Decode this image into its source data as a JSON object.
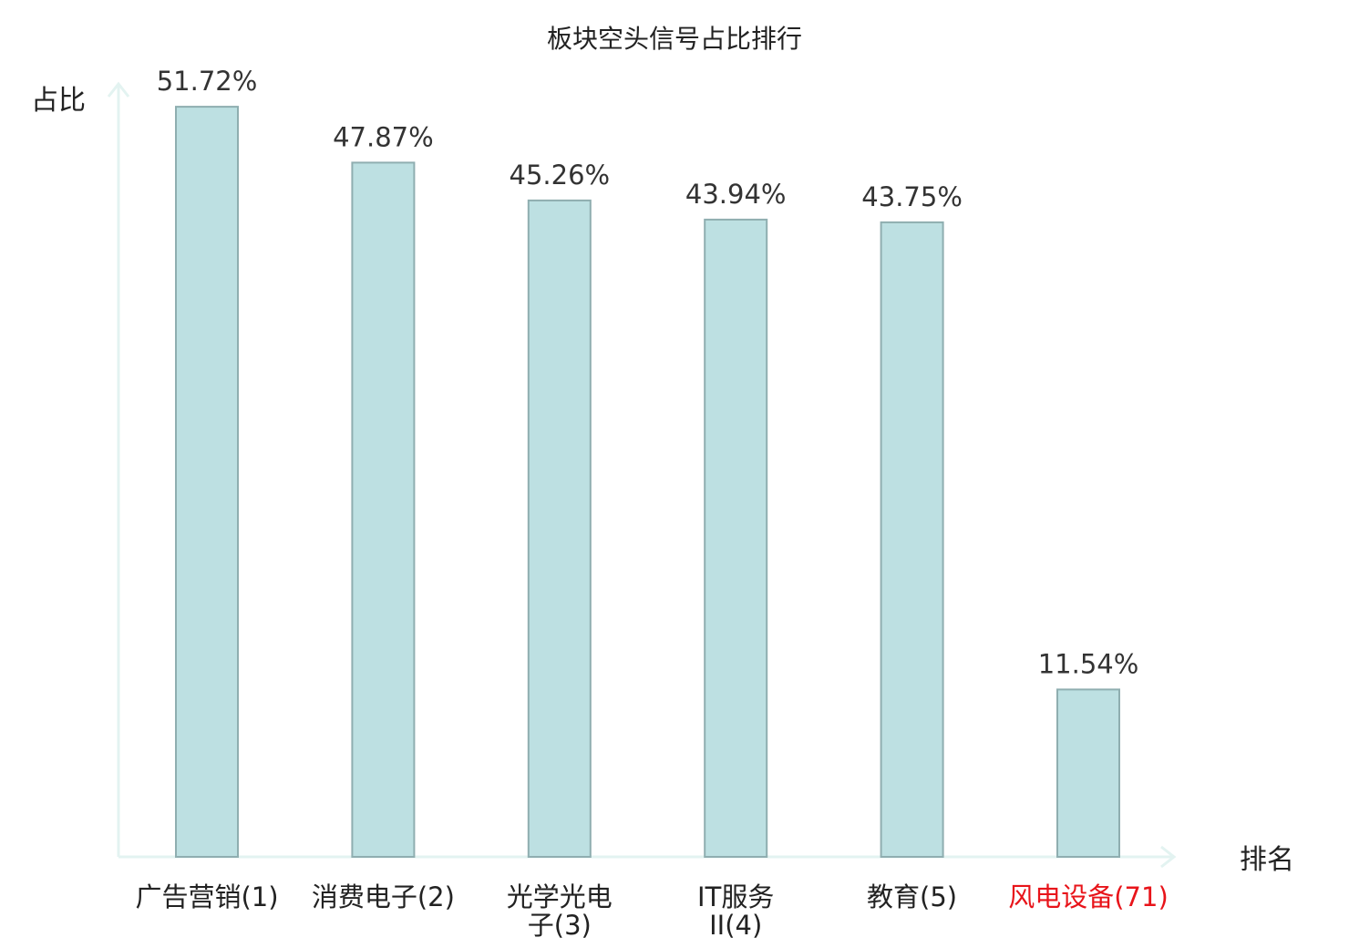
{
  "chart_data": {
    "type": "bar",
    "title": "板块空头信号占比排行",
    "ylabel": "占比",
    "xlabel": "排名",
    "categories": [
      "广告营销(1)",
      "消费电子(2)",
      "光学光电子(3)",
      "IT服务II(4)",
      "教育(5)",
      "风电设备(71)"
    ],
    "category_lines": [
      [
        "广告营销(1)"
      ],
      [
        "消费电子(2)"
      ],
      [
        "光学光电",
        "子(3)"
      ],
      [
        "IT服务",
        "II(4)"
      ],
      [
        "教育(5)"
      ],
      [
        "风电设备(71)"
      ]
    ],
    "values": [
      51.72,
      47.87,
      45.26,
      43.94,
      43.75,
      11.54
    ],
    "value_labels": [
      "51.72%",
      "47.87%",
      "45.26%",
      "43.94%",
      "43.75%",
      "11.54%"
    ],
    "highlight_index": 5,
    "ylim": [
      0,
      53.3
    ],
    "grid": false,
    "legend": "none",
    "colors": {
      "bar_fill": "#bde0e2",
      "bar_stroke": "#8faeb0",
      "axis": "#e3f3f1",
      "label": "#222222",
      "highlight_label": "#e8141a"
    }
  }
}
